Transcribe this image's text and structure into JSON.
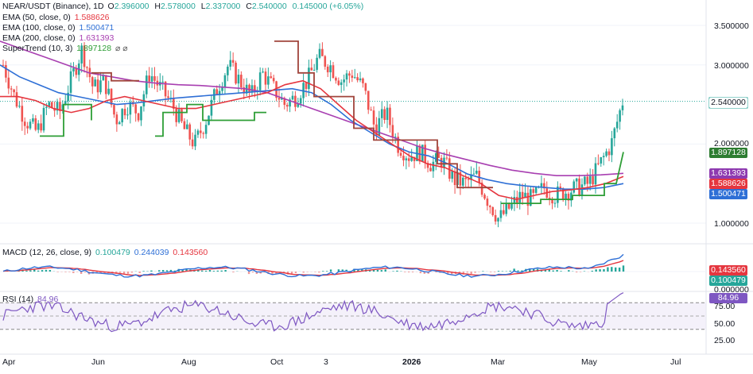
{
  "header": {
    "symbol": "NEAR/USDT (Binance), 1D",
    "ohlc": [
      {
        "k": "O",
        "v": "2.396000"
      },
      {
        "k": "H",
        "v": "2.578000"
      },
      {
        "k": "L",
        "v": "2.337000"
      },
      {
        "k": "C",
        "v": "2.540000"
      }
    ],
    "change": "0.145000 (+6.05%)",
    "up_color": "#26a69a"
  },
  "indicators": [
    {
      "label": "EMA (50, close, 0)",
      "value": "1.588626",
      "color": "#e5363f"
    },
    {
      "label": "EMA (100, close, 0)",
      "value": "1.500471",
      "color": "#2e6fd6"
    },
    {
      "label": "EMA (200, close, 0)",
      "value": "1.631393",
      "color": "#a83fb1"
    },
    {
      "label": "SuperTrend (10, 3)",
      "value": "1.897128",
      "color": "#2e9e36",
      "extra": "⌀ ⌀"
    }
  ],
  "chart_data": [
    {
      "pane": "price",
      "type": "candlestick",
      "y_ticks": [
        "3.500000",
        "3.000000",
        "2.000000",
        "1.000000"
      ],
      "last_price": "2.540000",
      "price_tags": [
        {
          "value": "2.540000",
          "bg": "#ffffff",
          "fg": "#131722",
          "border": "#26a69a"
        },
        {
          "value": "1.897128",
          "bg": "#2e7d32",
          "fg": "#ffffff"
        },
        {
          "value": "1.631393",
          "bg": "#8e3ab0",
          "fg": "#ffffff"
        },
        {
          "value": "1.588626",
          "bg": "#e5363f",
          "fg": "#ffffff"
        },
        {
          "value": "1.500471",
          "bg": "#2e6fd6",
          "fg": "#ffffff"
        }
      ],
      "close_path": [
        3.0,
        2.6,
        2.3,
        2.15,
        2.5,
        2.4,
        2.8,
        3.2,
        2.7,
        2.8,
        2.3,
        2.5,
        2.4,
        2.9,
        2.7,
        2.5,
        2.2,
        2.0,
        2.3,
        2.7,
        3.0,
        2.8,
        2.6,
        2.9,
        2.7,
        2.5,
        2.6,
        2.8,
        3.1,
        3.0,
        2.8,
        2.9,
        2.7,
        2.2,
        2.4,
        2.0,
        1.85,
        1.9,
        1.75,
        1.8,
        1.55,
        1.5,
        1.6,
        1.3,
        1.05,
        1.2,
        1.35,
        1.3,
        1.45,
        1.35,
        1.4,
        1.45,
        1.5,
        1.75,
        2.0,
        2.54
      ],
      "ema50_path": [
        2.6,
        2.6,
        2.55,
        2.45,
        2.4,
        2.45,
        2.55,
        2.6,
        2.55,
        2.5,
        2.45,
        2.45,
        2.5,
        2.55,
        2.6,
        2.65,
        2.75,
        2.8,
        2.7,
        2.5,
        2.3,
        2.15,
        2.0,
        1.85,
        1.75,
        1.7,
        1.6,
        1.5,
        1.35,
        1.3,
        1.35,
        1.4,
        1.42,
        1.45,
        1.5,
        1.59
      ],
      "ema100_path": [
        3.0,
        2.85,
        2.75,
        2.65,
        2.6,
        2.55,
        2.5,
        2.52,
        2.55,
        2.58,
        2.6,
        2.62,
        2.64,
        2.66,
        2.68,
        2.7,
        2.65,
        2.5,
        2.3,
        2.15,
        2.0,
        1.9,
        1.85,
        1.75,
        1.62,
        1.55,
        1.5,
        1.47,
        1.45,
        1.43,
        1.43,
        1.45,
        1.5
      ],
      "ema200_path": [
        3.3,
        3.2,
        3.1,
        3.0,
        2.9,
        2.85,
        2.8,
        2.77,
        2.75,
        2.74,
        2.72,
        2.7,
        2.65,
        2.55,
        2.45,
        2.35,
        2.25,
        2.15,
        2.05,
        1.95,
        1.87,
        1.8,
        1.73,
        1.67,
        1.63,
        1.6,
        1.6,
        1.61,
        1.63
      ],
      "supertrend_note": "step line, red when bearish, green when bullish"
    },
    {
      "pane": "macd",
      "type": "line",
      "label": "MACD (12, 26, close, 9)",
      "values": [
        {
          "v": "0.100479",
          "color": "#26a69a"
        },
        {
          "v": "0.244039",
          "color": "#2e6fd6"
        },
        {
          "v": "0.143560",
          "color": "#e5363f"
        }
      ],
      "y_ticks": [
        "0.000000"
      ],
      "tags": [
        {
          "value": "0.143560",
          "bg": "#e5363f"
        },
        {
          "value": "0.100479",
          "bg": "#26a69a"
        }
      ]
    },
    {
      "pane": "rsi",
      "type": "line",
      "label": "RSI (14)",
      "value": "84.96",
      "y_ticks": [
        "75.00",
        "50.00",
        "25.00"
      ],
      "tag": {
        "value": "84.96",
        "bg": "#7e57c2"
      },
      "ylim": [
        0,
        100
      ]
    }
  ],
  "x_axis": [
    {
      "label": "Apr",
      "bold": false
    },
    {
      "label": "Jun",
      "bold": false
    },
    {
      "label": "Aug",
      "bold": false
    },
    {
      "label": "Oct",
      "bold": false
    },
    {
      "label": "3",
      "bold": false
    },
    {
      "label": "2026",
      "bold": true
    },
    {
      "label": "Mar",
      "bold": false
    },
    {
      "label": "May",
      "bold": false
    },
    {
      "label": "Jul",
      "bold": false
    }
  ]
}
